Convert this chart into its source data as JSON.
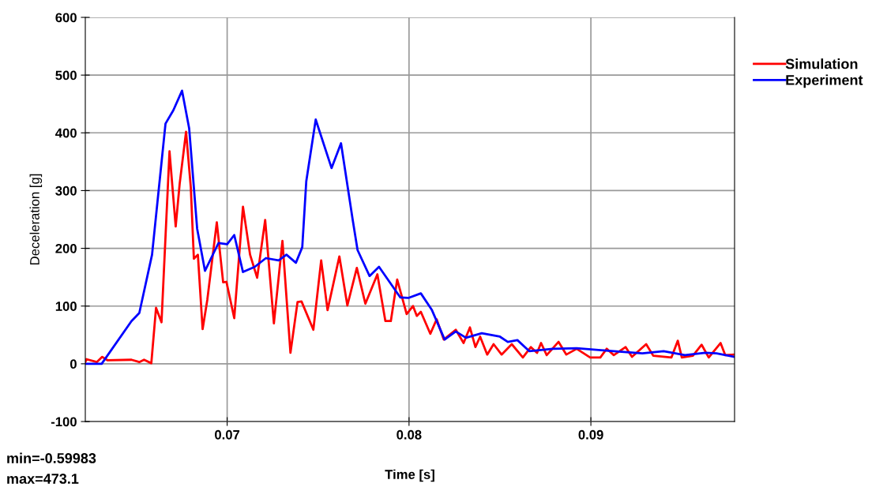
{
  "chart_data": {
    "type": "line",
    "xlabel": "Time [s]",
    "ylabel": "Deceleration [g]",
    "xlim": [
      0.0622,
      0.0979
    ],
    "xticks": [
      0.07,
      0.08,
      0.09
    ],
    "ylim": [
      -100,
      600
    ],
    "yticks": [
      -100,
      0,
      100,
      200,
      300,
      400,
      500,
      600
    ],
    "grid": true,
    "legend": "top right",
    "marker": "none",
    "line_style": "solid",
    "annotations": [
      "min=-0.59983",
      "max=473.1"
    ],
    "series": [
      {
        "name": "Simulation",
        "color": "#ff0000",
        "x": [
          0.0622,
          0.06226,
          0.06283,
          0.06313,
          0.06343,
          0.06474,
          0.06517,
          0.06543,
          0.06583,
          0.06609,
          0.06639,
          0.06683,
          0.06717,
          0.06739,
          0.06774,
          0.068,
          0.06817,
          0.06839,
          0.06865,
          0.06891,
          0.06943,
          0.06978,
          0.06996,
          0.07039,
          0.07087,
          0.07126,
          0.07165,
          0.07209,
          0.07257,
          0.07304,
          0.07348,
          0.07387,
          0.07409,
          0.07474,
          0.07517,
          0.07552,
          0.07617,
          0.07661,
          0.07713,
          0.0776,
          0.07826,
          0.0787,
          0.079,
          0.07935,
          0.07987,
          0.08022,
          0.08043,
          0.08065,
          0.08117,
          0.08152,
          0.08191,
          0.08257,
          0.083,
          0.08335,
          0.08365,
          0.08391,
          0.0843,
          0.08465,
          0.08509,
          0.08565,
          0.08626,
          0.0867,
          0.08704,
          0.08726,
          0.08757,
          0.08822,
          0.08865,
          0.08922,
          0.08996,
          0.09052,
          0.09087,
          0.09126,
          0.09191,
          0.09226,
          0.09304,
          0.09343,
          0.09443,
          0.09478,
          0.095,
          0.09561,
          0.09609,
          0.09648,
          0.09713,
          0.09739,
          0.0979
        ],
        "values": [
          3,
          8,
          3,
          12,
          6,
          7,
          3,
          7,
          1,
          97,
          72,
          368,
          238,
          312,
          402,
          306,
          182,
          189,
          60,
          111,
          245,
          141,
          142,
          79,
          272,
          189,
          149,
          249,
          70,
          213,
          19,
          107,
          108,
          59,
          179,
          93,
          186,
          101,
          166,
          104,
          155,
          74,
          74,
          146,
          86,
          100,
          83,
          90,
          52,
          77,
          42,
          59,
          36,
          63,
          29,
          47,
          16,
          34,
          16,
          34,
          11,
          29,
          19,
          36,
          15,
          38,
          16,
          26,
          11,
          11,
          26,
          15,
          29,
          12,
          34,
          14,
          11,
          40,
          11,
          14,
          33,
          11,
          36,
          15,
          16
        ]
      },
      {
        "name": "Experiment",
        "color": "#0000ff",
        "x": [
          0.0622,
          0.0631,
          0.06474,
          0.06517,
          0.06587,
          0.06661,
          0.06704,
          0.06752,
          0.06791,
          0.06835,
          0.06878,
          0.06952,
          0.07,
          0.07039,
          0.07087,
          0.07152,
          0.07213,
          0.07283,
          0.07326,
          0.07378,
          0.07413,
          0.07435,
          0.07487,
          0.07574,
          0.07626,
          0.07691,
          0.07717,
          0.07783,
          0.07835,
          0.07952,
          0.07996,
          0.08065,
          0.08126,
          0.08196,
          0.08257,
          0.08313,
          0.084,
          0.085,
          0.08543,
          0.08596,
          0.08661,
          0.08791,
          0.08922,
          0.09083,
          0.09283,
          0.094,
          0.09517,
          0.0963,
          0.09691,
          0.0979
        ],
        "values": [
          0,
          0,
          74,
          88,
          189,
          416,
          439,
          473,
          408,
          234,
          161,
          209,
          207,
          223,
          159,
          168,
          183,
          179,
          189,
          175,
          202,
          316,
          423,
          339,
          382,
          248,
          197,
          152,
          168,
          115,
          114,
          122,
          93,
          42,
          56,
          45,
          53,
          47,
          38,
          41,
          22,
          26,
          27,
          23,
          18,
          22,
          15,
          19,
          18,
          12
        ]
      }
    ]
  }
}
